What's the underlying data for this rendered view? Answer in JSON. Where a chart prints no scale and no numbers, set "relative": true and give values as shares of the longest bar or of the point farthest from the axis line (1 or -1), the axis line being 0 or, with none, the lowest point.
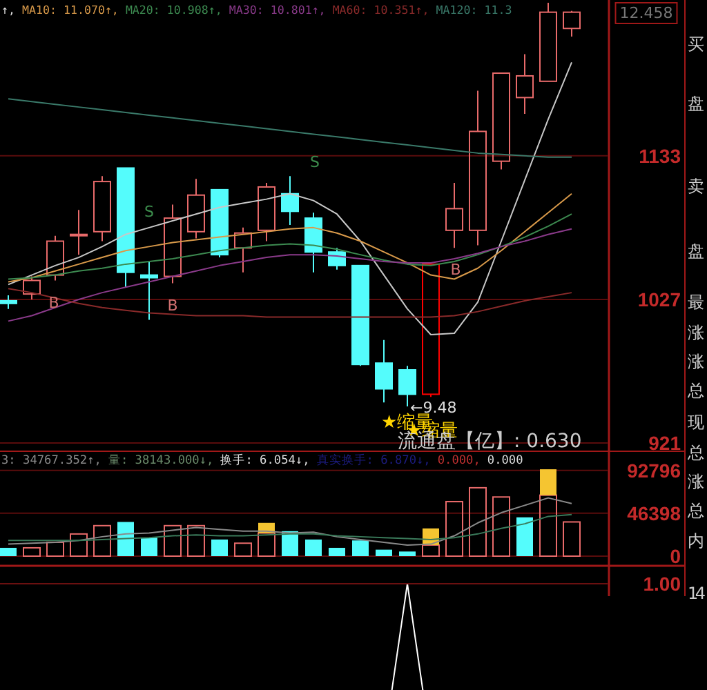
{
  "chart_data": [
    {
      "type": "candlestick",
      "categories": [
        null,
        null,
        null,
        null,
        null,
        null,
        null,
        null,
        null,
        null,
        null,
        null,
        null,
        null,
        null,
        null,
        null,
        null,
        null,
        null,
        null,
        null,
        null,
        null,
        null
      ],
      "ohlc": [
        [
          1026,
          1030,
          1020,
          1024
        ],
        [
          1031,
          1044,
          1027,
          1041
        ],
        [
          1045,
          1074,
          1041,
          1070
        ],
        [
          1074,
          1093,
          1060,
          1075
        ],
        [
          1077,
          1118,
          1070,
          1114
        ],
        [
          1124,
          1124,
          1036,
          1047
        ],
        [
          1045,
          1055,
          1012,
          1043
        ],
        [
          1044,
          1097,
          1039,
          1087
        ],
        [
          1077,
          1116,
          1072,
          1104
        ],
        [
          1108,
          1108,
          1058,
          1060
        ],
        [
          1065,
          1080,
          1047,
          1076
        ],
        [
          1078,
          1113,
          1070,
          1110
        ],
        [
          1105,
          1118,
          1082,
          1092
        ],
        [
          1087,
          1091,
          1047,
          1062
        ],
        [
          1062,
          1065,
          1049,
          1052
        ],
        [
          1052,
          1052,
          978,
          979
        ],
        [
          980,
          997,
          951,
          961
        ],
        [
          975,
          978,
          948,
          957
        ],
        [
          957,
          1053,
          955,
          1053
        ],
        [
          1078,
          1113,
          1065,
          1094
        ],
        [
          1078,
          1181,
          1067,
          1151
        ],
        [
          1129,
          1194,
          1123,
          1194
        ],
        [
          1176,
          1208,
          1164,
          1192
        ],
        [
          1188,
          1246,
          1188,
          1239
        ],
        [
          1227,
          1240,
          1221,
          1239
        ]
      ],
      "colors": [
        "#54fcfc",
        "#e86a6a",
        "#e86a6a",
        "#e86a6a",
        "#e86a6a",
        "#54fcfc",
        "#54fcfc",
        "#e86a6a",
        "#e86a6a",
        "#54fcfc",
        "#e86a6a",
        "#e86a6a",
        "#54fcfc",
        "#54fcfc",
        "#54fcfc",
        "#54fcfc",
        "#54fcfc",
        "#54fcfc",
        "#ff0000",
        "#e86a6a",
        "#e86a6a",
        "#e86a6a",
        "#e86a6a",
        "#e86a6a",
        "#e86a6a"
      ],
      "series": [
        {
          "type": "line",
          "color": "#c8c8c8",
          "values": [
            1038,
            1045,
            1052,
            1058,
            1066,
            1075,
            1080,
            1085,
            1090,
            1095,
            1098,
            1101,
            1105,
            1100,
            1090,
            1070,
            1045,
            1020,
            1001,
            1002,
            1025,
            1070,
            1115,
            1160,
            1202
          ]
        },
        {
          "type": "line",
          "name": "MA10: 11.070↑,",
          "color": "#d99a4a",
          "values": [
            1040,
            1043,
            1048,
            1053,
            1058,
            1063,
            1066,
            1069,
            1071,
            1073,
            1075,
            1077,
            1079,
            1080,
            1076,
            1070,
            1062,
            1054,
            1045,
            1042,
            1050,
            1063,
            1077,
            1091,
            1105
          ]
        },
        {
          "type": "line",
          "name": "MA20: 10.908↑,",
          "color": "#3c8a50",
          "values": [
            1042,
            1043,
            1045,
            1048,
            1050,
            1053,
            1055,
            1057,
            1060,
            1063,
            1065,
            1067,
            1068,
            1067,
            1064,
            1060,
            1056,
            1053,
            1052,
            1055,
            1060,
            1066,
            1073,
            1081,
            1090
          ]
        },
        {
          "type": "line",
          "name": "MA30: 10.801↑,",
          "color": "#8a3a8a",
          "values": [
            1011,
            1015,
            1021,
            1027,
            1032,
            1036,
            1040,
            1044,
            1048,
            1052,
            1055,
            1058,
            1060,
            1060,
            1059,
            1057,
            1055,
            1054,
            1054,
            1057,
            1061,
            1066,
            1070,
            1075,
            1079
          ]
        },
        {
          "type": "line",
          "name": "MA60: 10.351↑,",
          "color": "#8a2a2a",
          "values": [
            1035,
            1032,
            1028,
            1024,
            1021,
            1019,
            1017,
            1016,
            1015,
            1015,
            1015,
            1014,
            1014,
            1014,
            1014,
            1014,
            1014,
            1014,
            1014,
            1015,
            1018,
            1022,
            1026,
            1029,
            1032
          ]
        },
        {
          "type": "line",
          "name": "MA120: 11.3",
          "color": "#3a7a6a",
          "values": [
            1175,
            1173,
            1171,
            1169,
            1167,
            1165,
            1163,
            1161,
            1159,
            1157,
            1155,
            1153,
            1151,
            1149,
            1147,
            1145,
            1143,
            1141,
            1139,
            1137,
            1135,
            1134,
            1133,
            1132,
            1132
          ]
        }
      ],
      "ylim": [
        919,
        1248
      ],
      "yticks": [
        921,
        1027,
        1133
      ],
      "grid": "y",
      "tick_labels": "y",
      "legend": "top",
      "annotations": [
        "↑,",
        "12.458",
        "S",
        "S",
        "B",
        "B",
        "B",
        "←9.48",
        "★缩量",
        "★缩量",
        "流通盘【亿】: 0.630"
      ]
    },
    {
      "type": "bar",
      "stacked": true,
      "categories": [
        null,
        null,
        null,
        null,
        null,
        null,
        null,
        null,
        null,
        null,
        null,
        null,
        null,
        null,
        null,
        null,
        null,
        null,
        null,
        null,
        null,
        null,
        null,
        null,
        null
      ],
      "series": [
        {
          "color": "#e86a6a",
          "values": [
            null,
            9000,
            15000,
            24000,
            33000,
            null,
            null,
            33000,
            33000,
            null,
            14000,
            25000,
            null,
            null,
            null,
            null,
            null,
            null,
            12000,
            59000,
            74000,
            64000,
            null,
            66000,
            37000
          ]
        },
        {
          "color": "#54fcfc",
          "values": [
            9000,
            null,
            null,
            null,
            null,
            37000,
            20000,
            null,
            null,
            18000,
            null,
            null,
            27000,
            18000,
            9000,
            17000,
            7000,
            5000,
            null,
            null,
            null,
            null,
            42000,
            null,
            null
          ]
        },
        {
          "color": "#f5c531",
          "values": [
            null,
            null,
            null,
            null,
            null,
            null,
            null,
            null,
            null,
            null,
            null,
            11000,
            null,
            null,
            null,
            null,
            null,
            null,
            18000,
            null,
            null,
            null,
            null,
            28000,
            null
          ]
        },
        {
          "type": "line",
          "color": "#8a8a8a",
          "values": [
            13000,
            14000,
            15000,
            17000,
            21000,
            24000,
            25000,
            28000,
            31000,
            29000,
            27000,
            27000,
            25000,
            26000,
            21000,
            18000,
            15000,
            12000,
            13000,
            22000,
            36000,
            47000,
            55000,
            63000,
            57000
          ]
        },
        {
          "type": "line",
          "color": "#3a7a5a",
          "values": [
            17000,
            17000,
            17000,
            17000,
            18000,
            19000,
            20000,
            22000,
            23000,
            22000,
            22000,
            23000,
            24000,
            24000,
            22000,
            21000,
            20000,
            19000,
            18000,
            20000,
            24000,
            30000,
            35000,
            43000,
            45000
          ]
        }
      ],
      "ylim": [
        0,
        112000
      ],
      "yticks": [
        0,
        46398,
        92796
      ],
      "grid": "y",
      "tick_labels": "y",
      "annotations": [
        "3: 34767.352↑,",
        "量: 38143.000↓,",
        "换手: 6.054↓,",
        "真实换手: 6.870↓,",
        "0.000,",
        "0.000"
      ]
    },
    {
      "type": "line",
      "relative": true,
      "categories": [
        null,
        null,
        null,
        null,
        null,
        null,
        null,
        null,
        null,
        null,
        null,
        null,
        null,
        null,
        null,
        null,
        null,
        null,
        null,
        null,
        null,
        null,
        null,
        null,
        null
      ],
      "series": [
        {
          "color": "#ffffff",
          "values": [
            null,
            null,
            null,
            null,
            null,
            null,
            null,
            null,
            null,
            null,
            null,
            null,
            null,
            null,
            null,
            null,
            0,
            1,
            0,
            null,
            null,
            null,
            null,
            null,
            null
          ]
        }
      ],
      "ref_lines": [
        {
          "axis": "y",
          "value": 1,
          "label": "1.00",
          "color": "#6a1010"
        }
      ]
    },
    {
      "type": "other",
      "annotations": [
        "买",
        "盘",
        "卖",
        "盘",
        "最",
        "涨",
        "涨",
        "总",
        "现",
        "总",
        "涨",
        "总",
        "内",
        "14"
      ]
    }
  ]
}
